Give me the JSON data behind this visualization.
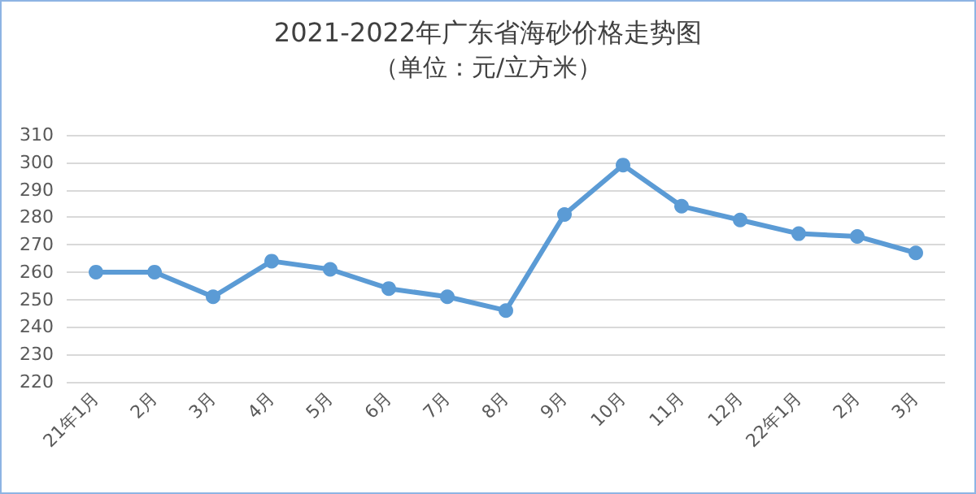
{
  "chart_data": {
    "type": "line",
    "title": "2021-2022年广东省海砂价格走势图",
    "subtitle": "（单位：元/立方米）",
    "categories": [
      "21年1月",
      "2月",
      "3月",
      "4月",
      "5月",
      "6月",
      "7月",
      "8月",
      "9月",
      "10月",
      "11月",
      "12月",
      "22年1月",
      "2月",
      "3月"
    ],
    "series": [
      {
        "color": "#5b9bd5",
        "values": [
          260,
          260,
          251,
          264,
          261,
          254,
          251,
          246,
          281,
          299,
          284,
          279,
          274,
          273,
          267
        ]
      }
    ],
    "ylim": [
      220,
      310
    ],
    "yticks": [
      220,
      230,
      240,
      250,
      260,
      270,
      280,
      290,
      300,
      310
    ],
    "grid": "y",
    "marker": "circle",
    "line_style": "solid"
  }
}
